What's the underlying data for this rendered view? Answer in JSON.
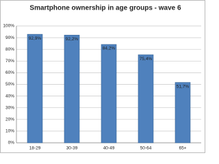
{
  "chart_data": {
    "type": "bar",
    "title": "Smartphone ownership in age groups - wave 6",
    "categories": [
      "18-29",
      "30-39",
      "40-49",
      "50-64",
      "65+"
    ],
    "values": [
      92.9,
      92.2,
      84.2,
      75.4,
      51.7
    ],
    "value_labels": [
      "92,9%",
      "92,2%",
      "84,2%",
      "75,4%",
      "51,7%"
    ],
    "color": "#4f81bd",
    "ylim": [
      0,
      100
    ],
    "yticks": [
      {
        "value": 0,
        "label": "0%"
      },
      {
        "value": 10,
        "label": "10%"
      },
      {
        "value": 20,
        "label": "20%"
      },
      {
        "value": 30,
        "label": "30%"
      },
      {
        "value": 40,
        "label": "40%"
      },
      {
        "value": 50,
        "label": "50%"
      },
      {
        "value": 60,
        "label": "60%"
      },
      {
        "value": 70,
        "label": "70%"
      },
      {
        "value": 80,
        "label": "80%"
      },
      {
        "value": 90,
        "label": "90%"
      },
      {
        "value": 100,
        "label": "100%"
      }
    ],
    "grid": true
  }
}
